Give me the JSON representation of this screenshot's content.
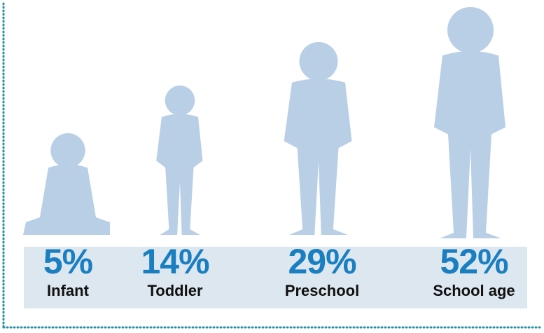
{
  "chart_data": {
    "type": "pictograph",
    "categories": [
      "Infant",
      "Toddler",
      "Preschool",
      "School age"
    ],
    "values": [
      5,
      14,
      29,
      52
    ],
    "value_labels": [
      "5%",
      "14%",
      "29%",
      "52%"
    ],
    "color": "#b8cfe5"
  }
}
